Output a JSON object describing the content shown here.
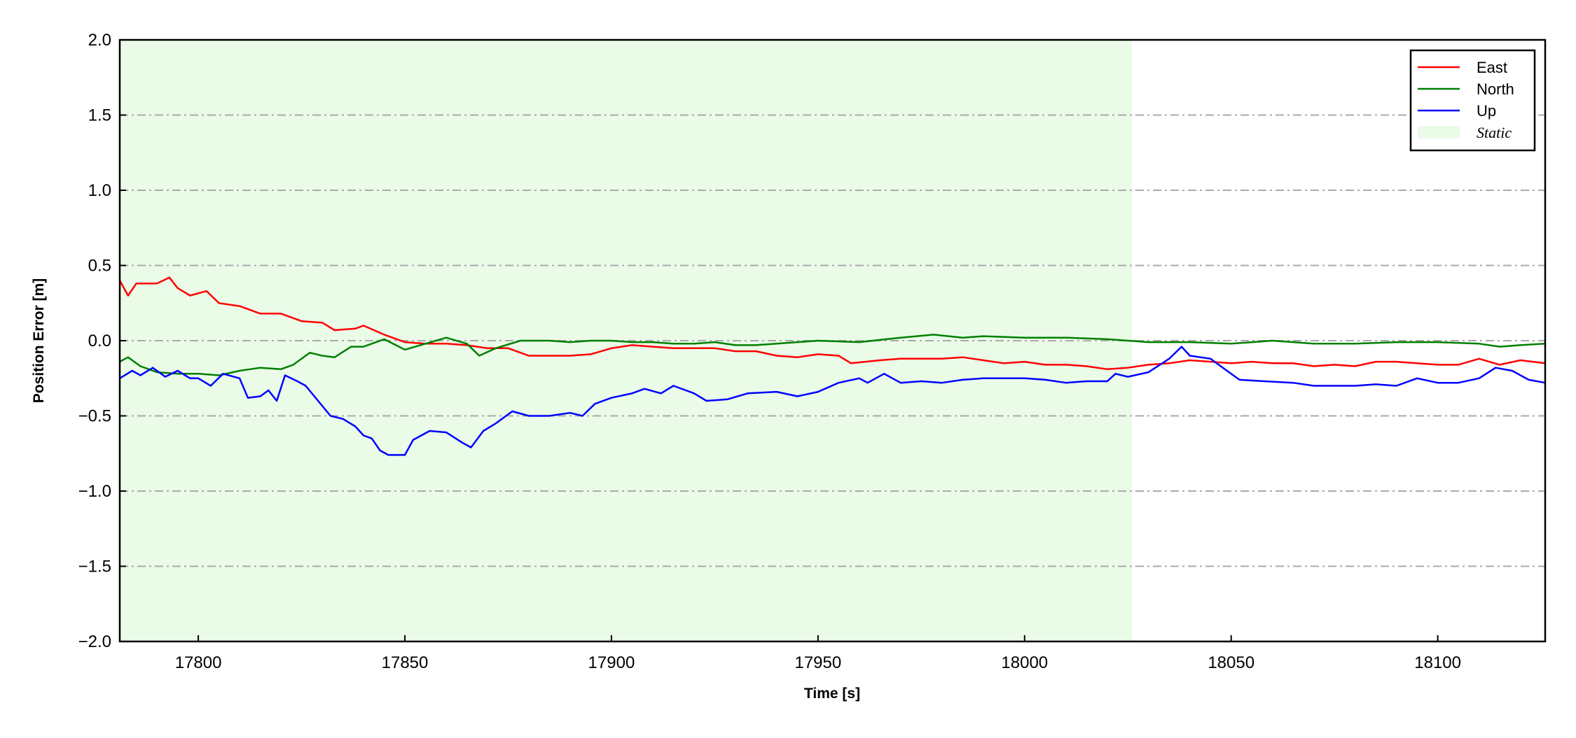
{
  "chart_data": {
    "type": "line",
    "title": "",
    "xlabel": "Time [s]",
    "ylabel": "Position Error [m]",
    "xlim": [
      17781,
      18126
    ],
    "ylim": [
      -2.0,
      2.0
    ],
    "xticks": [
      17800,
      17850,
      17900,
      17950,
      18000,
      18050,
      18100
    ],
    "xtick_labels": [
      "17800",
      "17850",
      "17900",
      "17950",
      "18000",
      "18050",
      "18100"
    ],
    "yticks": [
      -2.0,
      -1.5,
      -1.0,
      -0.5,
      0.0,
      0.5,
      1.0,
      1.5,
      2.0
    ],
    "ytick_labels": [
      "−2.0",
      "−1.5",
      "−1.0",
      "−0.5",
      "0.0",
      "0.5",
      "1.0",
      "1.5",
      "2.0"
    ],
    "grid": "horizontal dash-dot",
    "legend_placement": "top-right",
    "shaded_region": {
      "name": "Static",
      "x": [
        17781,
        18026
      ],
      "color": "#eafbe8"
    },
    "series": [
      {
        "name": "East",
        "color": "#ff0000",
        "x": [
          17781,
          17783,
          17785,
          17790,
          17793,
          17795,
          17798,
          17802,
          17805,
          17810,
          17815,
          17820,
          17825,
          17830,
          17833,
          17838,
          17840,
          17845,
          17850,
          17855,
          17860,
          17865,
          17870,
          17875,
          17880,
          17885,
          17890,
          17895,
          17900,
          17905,
          17910,
          17915,
          17920,
          17925,
          17930,
          17935,
          17940,
          17945,
          17950,
          17955,
          17958,
          17965,
          17970,
          17975,
          17980,
          17985,
          17990,
          17995,
          18000,
          18005,
          18010,
          18015,
          18020,
          18025,
          18030,
          18035,
          18040,
          18045,
          18050,
          18055,
          18060,
          18065,
          18070,
          18075,
          18080,
          18085,
          18090,
          18095,
          18100,
          18105,
          18110,
          18115,
          18120,
          18126
        ],
        "y": [
          0.4,
          0.3,
          0.38,
          0.38,
          0.42,
          0.35,
          0.3,
          0.33,
          0.25,
          0.23,
          0.18,
          0.18,
          0.13,
          0.12,
          0.07,
          0.08,
          0.1,
          0.04,
          -0.01,
          -0.02,
          -0.02,
          -0.03,
          -0.05,
          -0.05,
          -0.1,
          -0.1,
          -0.1,
          -0.09,
          -0.05,
          -0.03,
          -0.04,
          -0.05,
          -0.05,
          -0.05,
          -0.07,
          -0.07,
          -0.1,
          -0.11,
          -0.09,
          -0.1,
          -0.15,
          -0.13,
          -0.12,
          -0.12,
          -0.12,
          -0.11,
          -0.13,
          -0.15,
          -0.14,
          -0.16,
          -0.16,
          -0.17,
          -0.19,
          -0.18,
          -0.16,
          -0.15,
          -0.13,
          -0.14,
          -0.15,
          -0.14,
          -0.15,
          -0.15,
          -0.17,
          -0.16,
          -0.17,
          -0.14,
          -0.14,
          -0.15,
          -0.16,
          -0.16,
          -0.12,
          -0.16,
          -0.13,
          -0.15
        ]
      },
      {
        "name": "North",
        "color": "#008000",
        "x": [
          17781,
          17783,
          17786,
          17790,
          17795,
          17800,
          17805,
          17810,
          17815,
          17820,
          17823,
          17827,
          17830,
          17833,
          17837,
          17840,
          17845,
          17850,
          17855,
          17860,
          17865,
          17868,
          17872,
          17878,
          17885,
          17890,
          17895,
          17900,
          17905,
          17910,
          17915,
          17920,
          17925,
          17930,
          17935,
          17940,
          17950,
          17960,
          17970,
          17978,
          17985,
          17990,
          18000,
          18010,
          18020,
          18030,
          18040,
          18050,
          18060,
          18070,
          18080,
          18090,
          18100,
          18110,
          18115,
          18120,
          18126
        ],
        "y": [
          -0.14,
          -0.11,
          -0.17,
          -0.21,
          -0.22,
          -0.22,
          -0.23,
          -0.2,
          -0.18,
          -0.19,
          -0.16,
          -0.08,
          -0.1,
          -0.11,
          -0.04,
          -0.04,
          0.01,
          -0.06,
          -0.02,
          0.02,
          -0.02,
          -0.1,
          -0.05,
          0.0,
          0.0,
          -0.01,
          0.0,
          0.0,
          -0.01,
          -0.01,
          -0.02,
          -0.02,
          -0.01,
          -0.03,
          -0.03,
          -0.02,
          0.0,
          -0.01,
          0.02,
          0.04,
          0.02,
          0.03,
          0.02,
          0.02,
          0.01,
          -0.01,
          -0.01,
          -0.02,
          0.0,
          -0.02,
          -0.02,
          -0.01,
          -0.01,
          -0.02,
          -0.04,
          -0.03,
          -0.02
        ]
      },
      {
        "name": "Up",
        "color": "#0000ff",
        "x": [
          17781,
          17784,
          17786,
          17789,
          17792,
          17795,
          17798,
          17800,
          17803,
          17806,
          17810,
          17812,
          17815,
          17817,
          17819,
          17821,
          17824,
          17826,
          17829,
          17832,
          17835,
          17838,
          17840,
          17842,
          17844,
          17846,
          17850,
          17852,
          17856,
          17860,
          17864,
          17866,
          17869,
          17872,
          17876,
          17880,
          17885,
          17890,
          17893,
          17896,
          17900,
          17905,
          17908,
          17912,
          17915,
          17920,
          17923,
          17928,
          17933,
          17940,
          17945,
          17950,
          17955,
          17960,
          17962,
          17966,
          17970,
          17975,
          17980,
          17985,
          17990,
          17995,
          18000,
          18005,
          18010,
          18015,
          18020,
          18022,
          18025,
          18030,
          18035,
          18038,
          18040,
          18045,
          18048,
          18052,
          18058,
          18065,
          18070,
          18075,
          18080,
          18085,
          18090,
          18095,
          18100,
          18105,
          18110,
          18114,
          18118,
          18122,
          18126
        ],
        "y": [
          -0.25,
          -0.2,
          -0.23,
          -0.18,
          -0.24,
          -0.2,
          -0.25,
          -0.25,
          -0.3,
          -0.22,
          -0.25,
          -0.38,
          -0.37,
          -0.33,
          -0.4,
          -0.23,
          -0.27,
          -0.3,
          -0.4,
          -0.5,
          -0.52,
          -0.57,
          -0.63,
          -0.65,
          -0.73,
          -0.76,
          -0.76,
          -0.66,
          -0.6,
          -0.61,
          -0.68,
          -0.71,
          -0.6,
          -0.55,
          -0.47,
          -0.5,
          -0.5,
          -0.48,
          -0.5,
          -0.42,
          -0.38,
          -0.35,
          -0.32,
          -0.35,
          -0.3,
          -0.35,
          -0.4,
          -0.39,
          -0.35,
          -0.34,
          -0.37,
          -0.34,
          -0.28,
          -0.25,
          -0.28,
          -0.22,
          -0.28,
          -0.27,
          -0.28,
          -0.26,
          -0.25,
          -0.25,
          -0.25,
          -0.26,
          -0.28,
          -0.27,
          -0.27,
          -0.22,
          -0.24,
          -0.21,
          -0.12,
          -0.04,
          -0.1,
          -0.12,
          -0.18,
          -0.26,
          -0.27,
          -0.28,
          -0.3,
          -0.3,
          -0.3,
          -0.29,
          -0.3,
          -0.25,
          -0.28,
          -0.28,
          -0.25,
          -0.18,
          -0.2,
          -0.26,
          -0.28
        ]
      }
    ]
  }
}
